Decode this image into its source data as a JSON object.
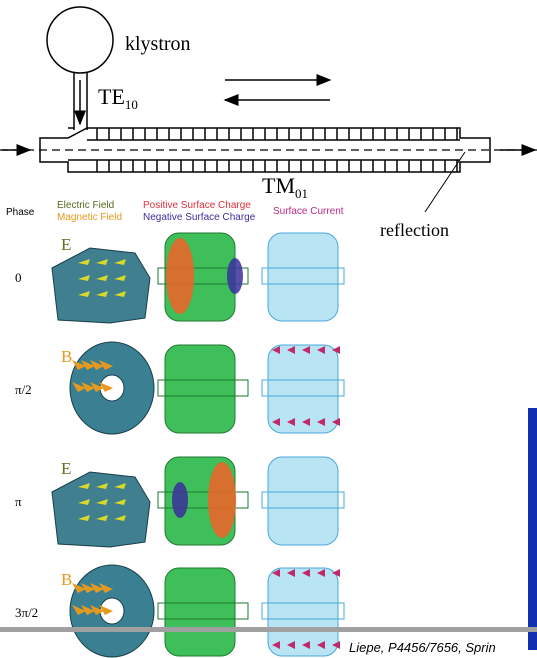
{
  "diagram": {
    "klystron": "klystron",
    "te": {
      "text": "TE",
      "sub": "10"
    },
    "tm": {
      "text": "TM",
      "sub": "01"
    },
    "reflection": "reflection"
  },
  "legend": {
    "phase": "Phase",
    "electric_field": "Electric Field",
    "magnetic_field": "Magnetic Field",
    "positive_charge": "Positive Surface Charge",
    "negative_charge": "Negative Surface Charge",
    "surface_current": "Surface Current"
  },
  "rows": [
    {
      "phase": "0",
      "field": "E"
    },
    {
      "phase": "π/2",
      "field": "B"
    },
    {
      "phase": "π",
      "field": "E"
    },
    {
      "phase": "3π/2",
      "field": "B"
    }
  ],
  "footer": "Liepe, P4456/7656, Sprin"
}
